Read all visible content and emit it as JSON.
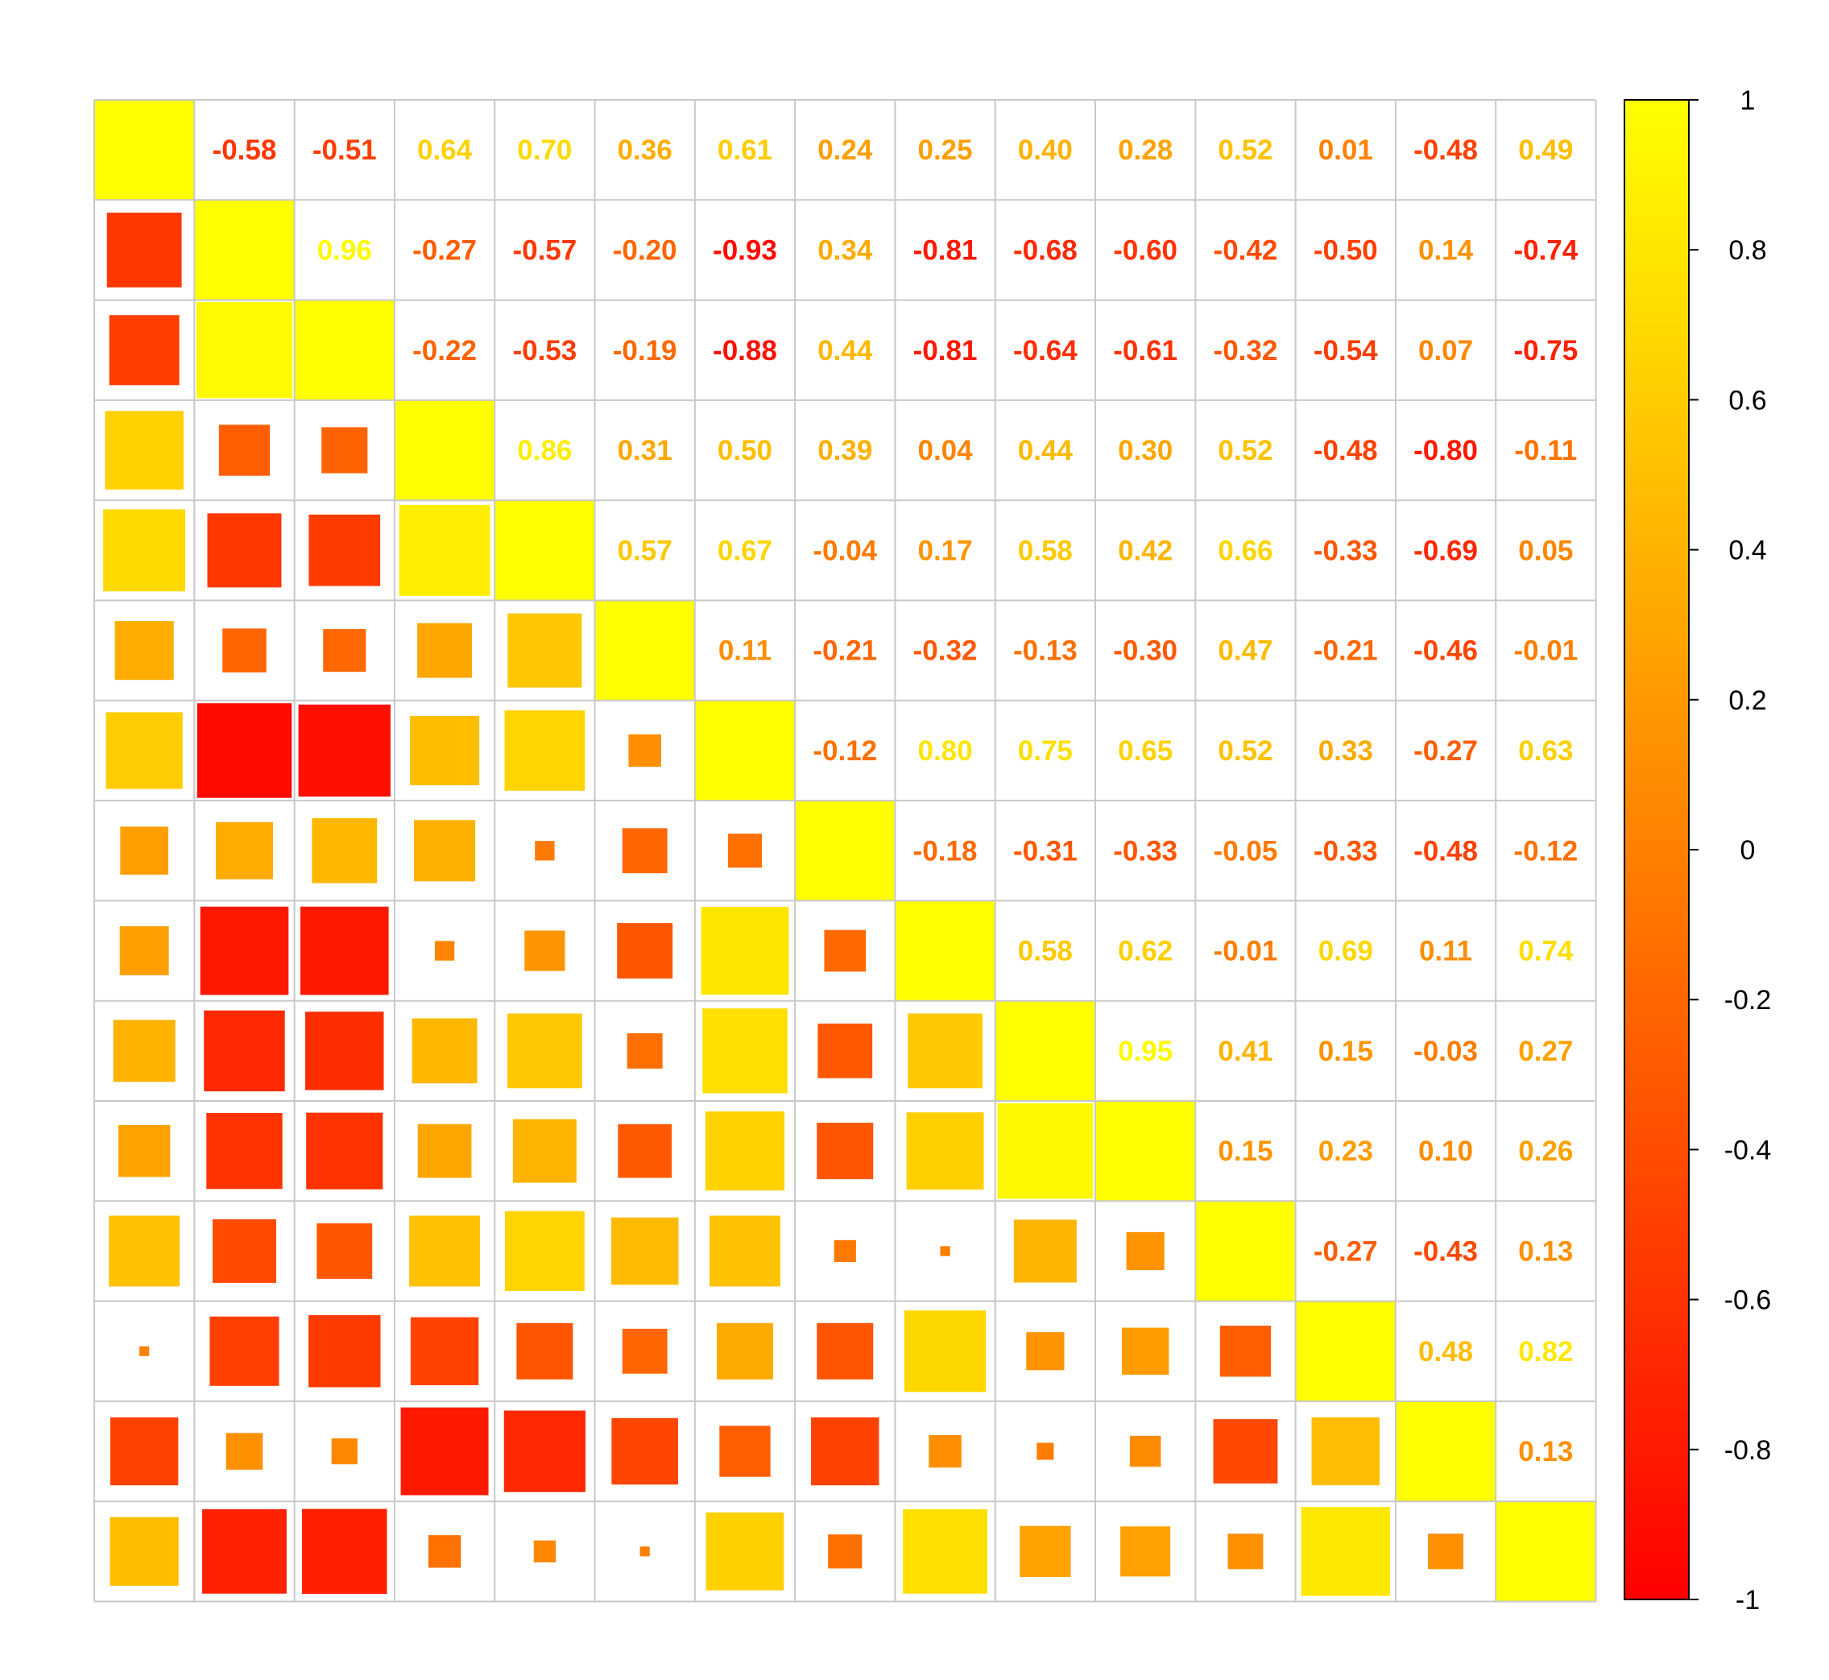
{
  "chart_data": {
    "type": "heatmap",
    "style": "correlation matrix: lower triangle squares sized and colored by value, upper triangle printed coefficients, diagonal filled",
    "size": 15,
    "upper_triangle_rows": [
      [
        -0.58,
        -0.51,
        0.64,
        0.7,
        0.36,
        0.61,
        0.24,
        0.25,
        0.4,
        0.28,
        0.52,
        0.01,
        -0.48,
        0.49
      ],
      [
        0.96,
        -0.27,
        -0.57,
        -0.2,
        -0.93,
        0.34,
        -0.81,
        -0.68,
        -0.6,
        -0.42,
        -0.5,
        0.14,
        -0.74
      ],
      [
        -0.22,
        -0.53,
        -0.19,
        -0.88,
        0.44,
        -0.81,
        -0.64,
        -0.61,
        -0.32,
        -0.54,
        0.07,
        -0.75
      ],
      [
        0.86,
        0.31,
        0.5,
        0.39,
        0.04,
        0.44,
        0.3,
        0.52,
        -0.48,
        -0.8,
        -0.11
      ],
      [
        0.57,
        0.67,
        -0.04,
        0.17,
        0.58,
        0.42,
        0.66,
        -0.33,
        -0.69,
        0.05
      ],
      [
        0.11,
        -0.21,
        -0.32,
        -0.13,
        -0.3,
        0.47,
        -0.21,
        -0.46,
        -0.01
      ],
      [
        -0.12,
        0.8,
        0.75,
        0.65,
        0.52,
        0.33,
        -0.27,
        0.63
      ],
      [
        -0.18,
        -0.31,
        -0.33,
        -0.05,
        -0.33,
        -0.48,
        -0.12
      ],
      [
        0.58,
        0.62,
        -0.01,
        0.69,
        0.11,
        0.74
      ],
      [
        0.95,
        0.41,
        0.15,
        -0.03,
        0.27
      ],
      [
        0.15,
        0.23,
        0.1,
        0.26
      ],
      [
        -0.27,
        -0.43,
        0.13
      ],
      [
        0.48,
        0.82
      ],
      [
        0.13
      ]
    ],
    "diagonal": 1,
    "color_scale": {
      "min": -1,
      "max": 1,
      "colors": {
        "-1": "#FF0000",
        "0": "#FF8000",
        "1": "#FFFF00"
      }
    },
    "colorbar_ticks": [
      "1",
      "0.8",
      "0.6",
      "0.4",
      "0.2",
      "0",
      "-0.2",
      "-0.4",
      "-0.6",
      "-0.8",
      "-1"
    ],
    "colorbar_position": "right",
    "grid": true,
    "grid_color": "#C8C8C8"
  }
}
